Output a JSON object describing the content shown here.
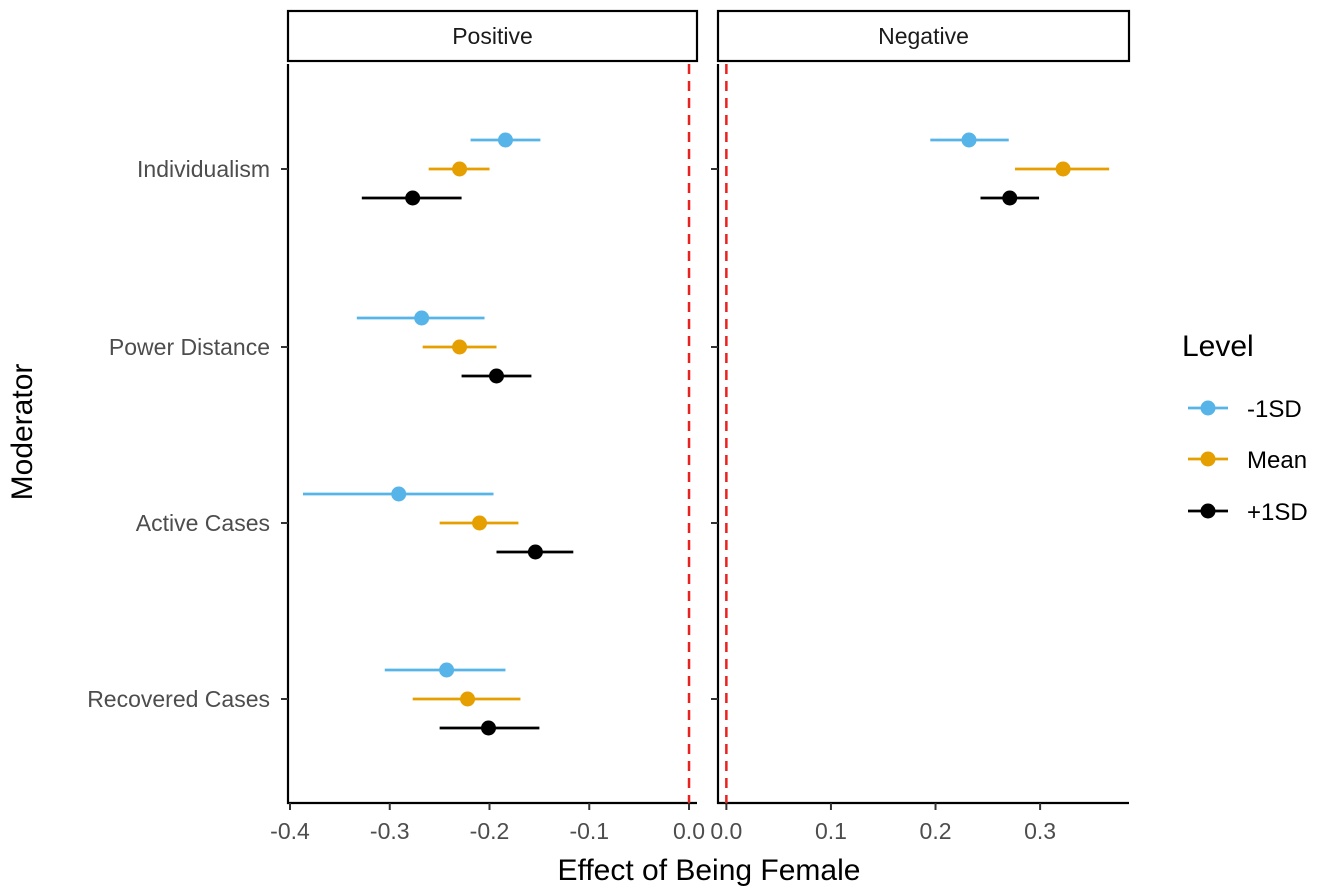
{
  "chart_data": {
    "type": "scatter",
    "subtype": "point-range faceted",
    "xlabel": "Effect of Being Female",
    "ylabel": "Moderator",
    "categories": [
      "Individualism",
      "Power Distance",
      "Active Cases",
      "Recovered Cases"
    ],
    "legend": {
      "title": "Level",
      "position": "right",
      "entries": [
        "-1SD",
        "Mean",
        "+1SD"
      ]
    },
    "levels": [
      {
        "name": "-1SD",
        "color": "#56B4E9"
      },
      {
        "name": "Mean",
        "color": "#E69F00"
      },
      {
        "name": "+1SD",
        "color": "#000000"
      }
    ],
    "reference_line": {
      "x": 0,
      "color": "#E8221E",
      "style": "dashed"
    },
    "grid": false,
    "facets": [
      {
        "title": "Positive",
        "xlim": [
          -0.402,
          0.008
        ],
        "xticks": [
          "-0.4",
          "-0.3",
          "-0.2",
          "-0.1",
          "0.0"
        ],
        "xtick_values": [
          -0.4,
          -0.3,
          -0.2,
          -0.1,
          0.0
        ],
        "series": [
          {
            "name": "-1SD",
            "points": [
              {
                "y": "Individualism",
                "x": -0.184,
                "low": -0.219,
                "high": -0.149
              },
              {
                "y": "Power Distance",
                "x": -0.268,
                "low": -0.333,
                "high": -0.205
              },
              {
                "y": "Active Cases",
                "x": -0.291,
                "low": -0.387,
                "high": -0.196
              },
              {
                "y": "Recovered Cases",
                "x": -0.243,
                "low": -0.305,
                "high": -0.184
              }
            ]
          },
          {
            "name": "Mean",
            "points": [
              {
                "y": "Individualism",
                "x": -0.23,
                "low": -0.261,
                "high": -0.2
              },
              {
                "y": "Power Distance",
                "x": -0.23,
                "low": -0.267,
                "high": -0.193
              },
              {
                "y": "Active Cases",
                "x": -0.21,
                "low": -0.25,
                "high": -0.171
              },
              {
                "y": "Recovered Cases",
                "x": -0.222,
                "low": -0.277,
                "high": -0.169
              }
            ]
          },
          {
            "name": "+1SD",
            "points": [
              {
                "y": "Individualism",
                "x": -0.277,
                "low": -0.328,
                "high": -0.228
              },
              {
                "y": "Power Distance",
                "x": -0.193,
                "low": -0.228,
                "high": -0.158
              },
              {
                "y": "Active Cases",
                "x": -0.154,
                "low": -0.193,
                "high": -0.116
              },
              {
                "y": "Recovered Cases",
                "x": -0.201,
                "low": -0.25,
                "high": -0.15
              }
            ]
          }
        ]
      },
      {
        "title": "Negative",
        "xlim": [
          -0.008,
          0.385
        ],
        "xticks": [
          "0.0",
          "0.1",
          "0.2",
          "0.3"
        ],
        "xtick_values": [
          0.0,
          0.1,
          0.2,
          0.3
        ],
        "series": [
          {
            "name": "-1SD",
            "points": [
              {
                "y": "Individualism",
                "x": 0.232,
                "low": 0.195,
                "high": 0.27
              }
            ]
          },
          {
            "name": "Mean",
            "points": [
              {
                "y": "Individualism",
                "x": 0.322,
                "low": 0.276,
                "high": 0.366
              }
            ]
          },
          {
            "name": "+1SD",
            "points": [
              {
                "y": "Individualism",
                "x": 0.271,
                "low": 0.243,
                "high": 0.299
              }
            ]
          }
        ]
      }
    ]
  }
}
